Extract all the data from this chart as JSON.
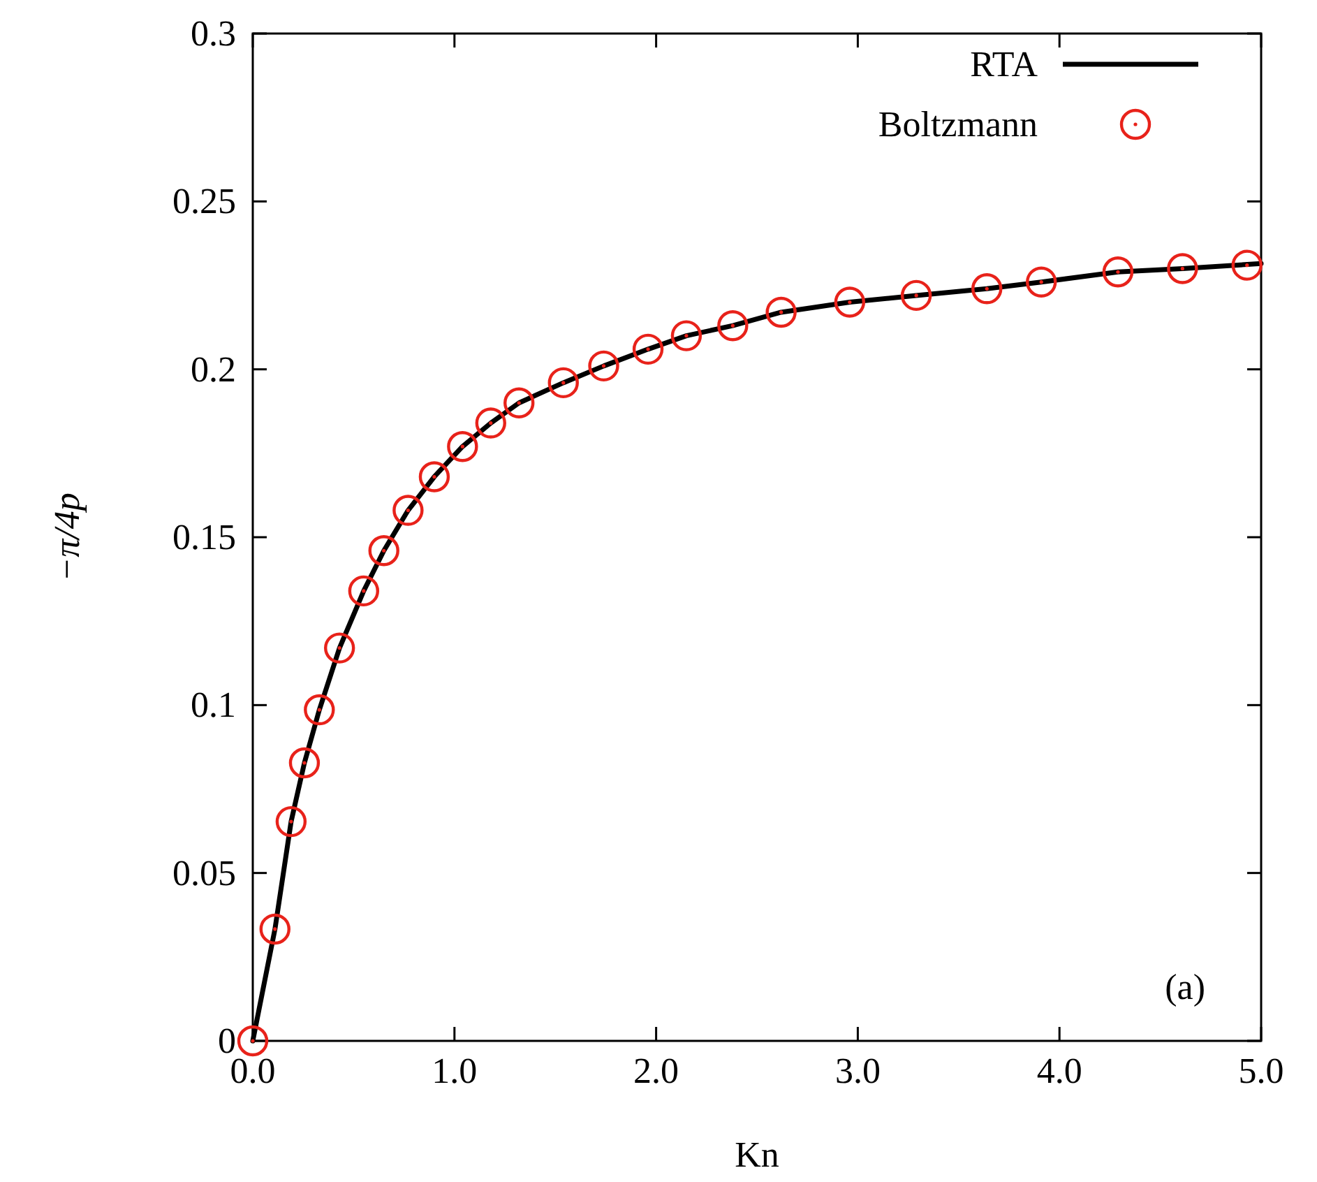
{
  "chart_data": {
    "type": "line",
    "xlabel": "Kn",
    "ylabel": "−π/4p",
    "xlim": [
      0,
      5
    ],
    "ylim": [
      0,
      0.3
    ],
    "xticks": [
      {
        "value": 0,
        "label": "0.0"
      },
      {
        "value": 1,
        "label": "1.0"
      },
      {
        "value": 2,
        "label": "2.0"
      },
      {
        "value": 3,
        "label": "3.0"
      },
      {
        "value": 4,
        "label": "4.0"
      },
      {
        "value": 5,
        "label": "5.0"
      }
    ],
    "yticks": [
      0,
      0.05,
      0.1,
      0.15,
      0.2,
      0.25,
      0.3
    ],
    "grid": false,
    "legend": "top right",
    "annotations": [
      "(a)"
    ],
    "series": [
      {
        "name": "RTA",
        "color": "#000000",
        "marker": "none",
        "line_style": "solid",
        "x": [
          0,
          0.11,
          0.19,
          0.256,
          0.33,
          0.43,
          0.55,
          0.65,
          0.77,
          0.9,
          1.04,
          1.18,
          1.32,
          1.54,
          1.74,
          1.96,
          2.15,
          2.38,
          2.62,
          2.96,
          3.29,
          3.64,
          3.91,
          4.29,
          4.61,
          5
        ],
        "values": [
          0,
          0.0333,
          0.0653,
          0.0828,
          0.0986,
          0.117,
          0.134,
          0.146,
          0.158,
          0.168,
          0.177,
          0.184,
          0.19,
          0.196,
          0.201,
          0.206,
          0.21,
          0.213,
          0.217,
          0.22,
          0.222,
          0.224,
          0.226,
          0.229,
          0.23,
          0.2315
        ]
      },
      {
        "name": "Boltzmann",
        "type": "scatter",
        "color": "#e8221a",
        "marker": "circle",
        "x": [
          0,
          0.11,
          0.19,
          0.256,
          0.33,
          0.43,
          0.55,
          0.65,
          0.77,
          0.9,
          1.04,
          1.18,
          1.32,
          1.54,
          1.74,
          1.96,
          2.15,
          2.38,
          2.62,
          2.96,
          3.29,
          3.64,
          3.91,
          4.29,
          4.61,
          4.93
        ],
        "values": [
          0,
          0.0333,
          0.0653,
          0.0828,
          0.0986,
          0.117,
          0.134,
          0.146,
          0.158,
          0.168,
          0.177,
          0.184,
          0.19,
          0.196,
          0.201,
          0.206,
          0.21,
          0.213,
          0.217,
          0.22,
          0.222,
          0.224,
          0.226,
          0.229,
          0.23,
          0.231
        ]
      }
    ]
  }
}
